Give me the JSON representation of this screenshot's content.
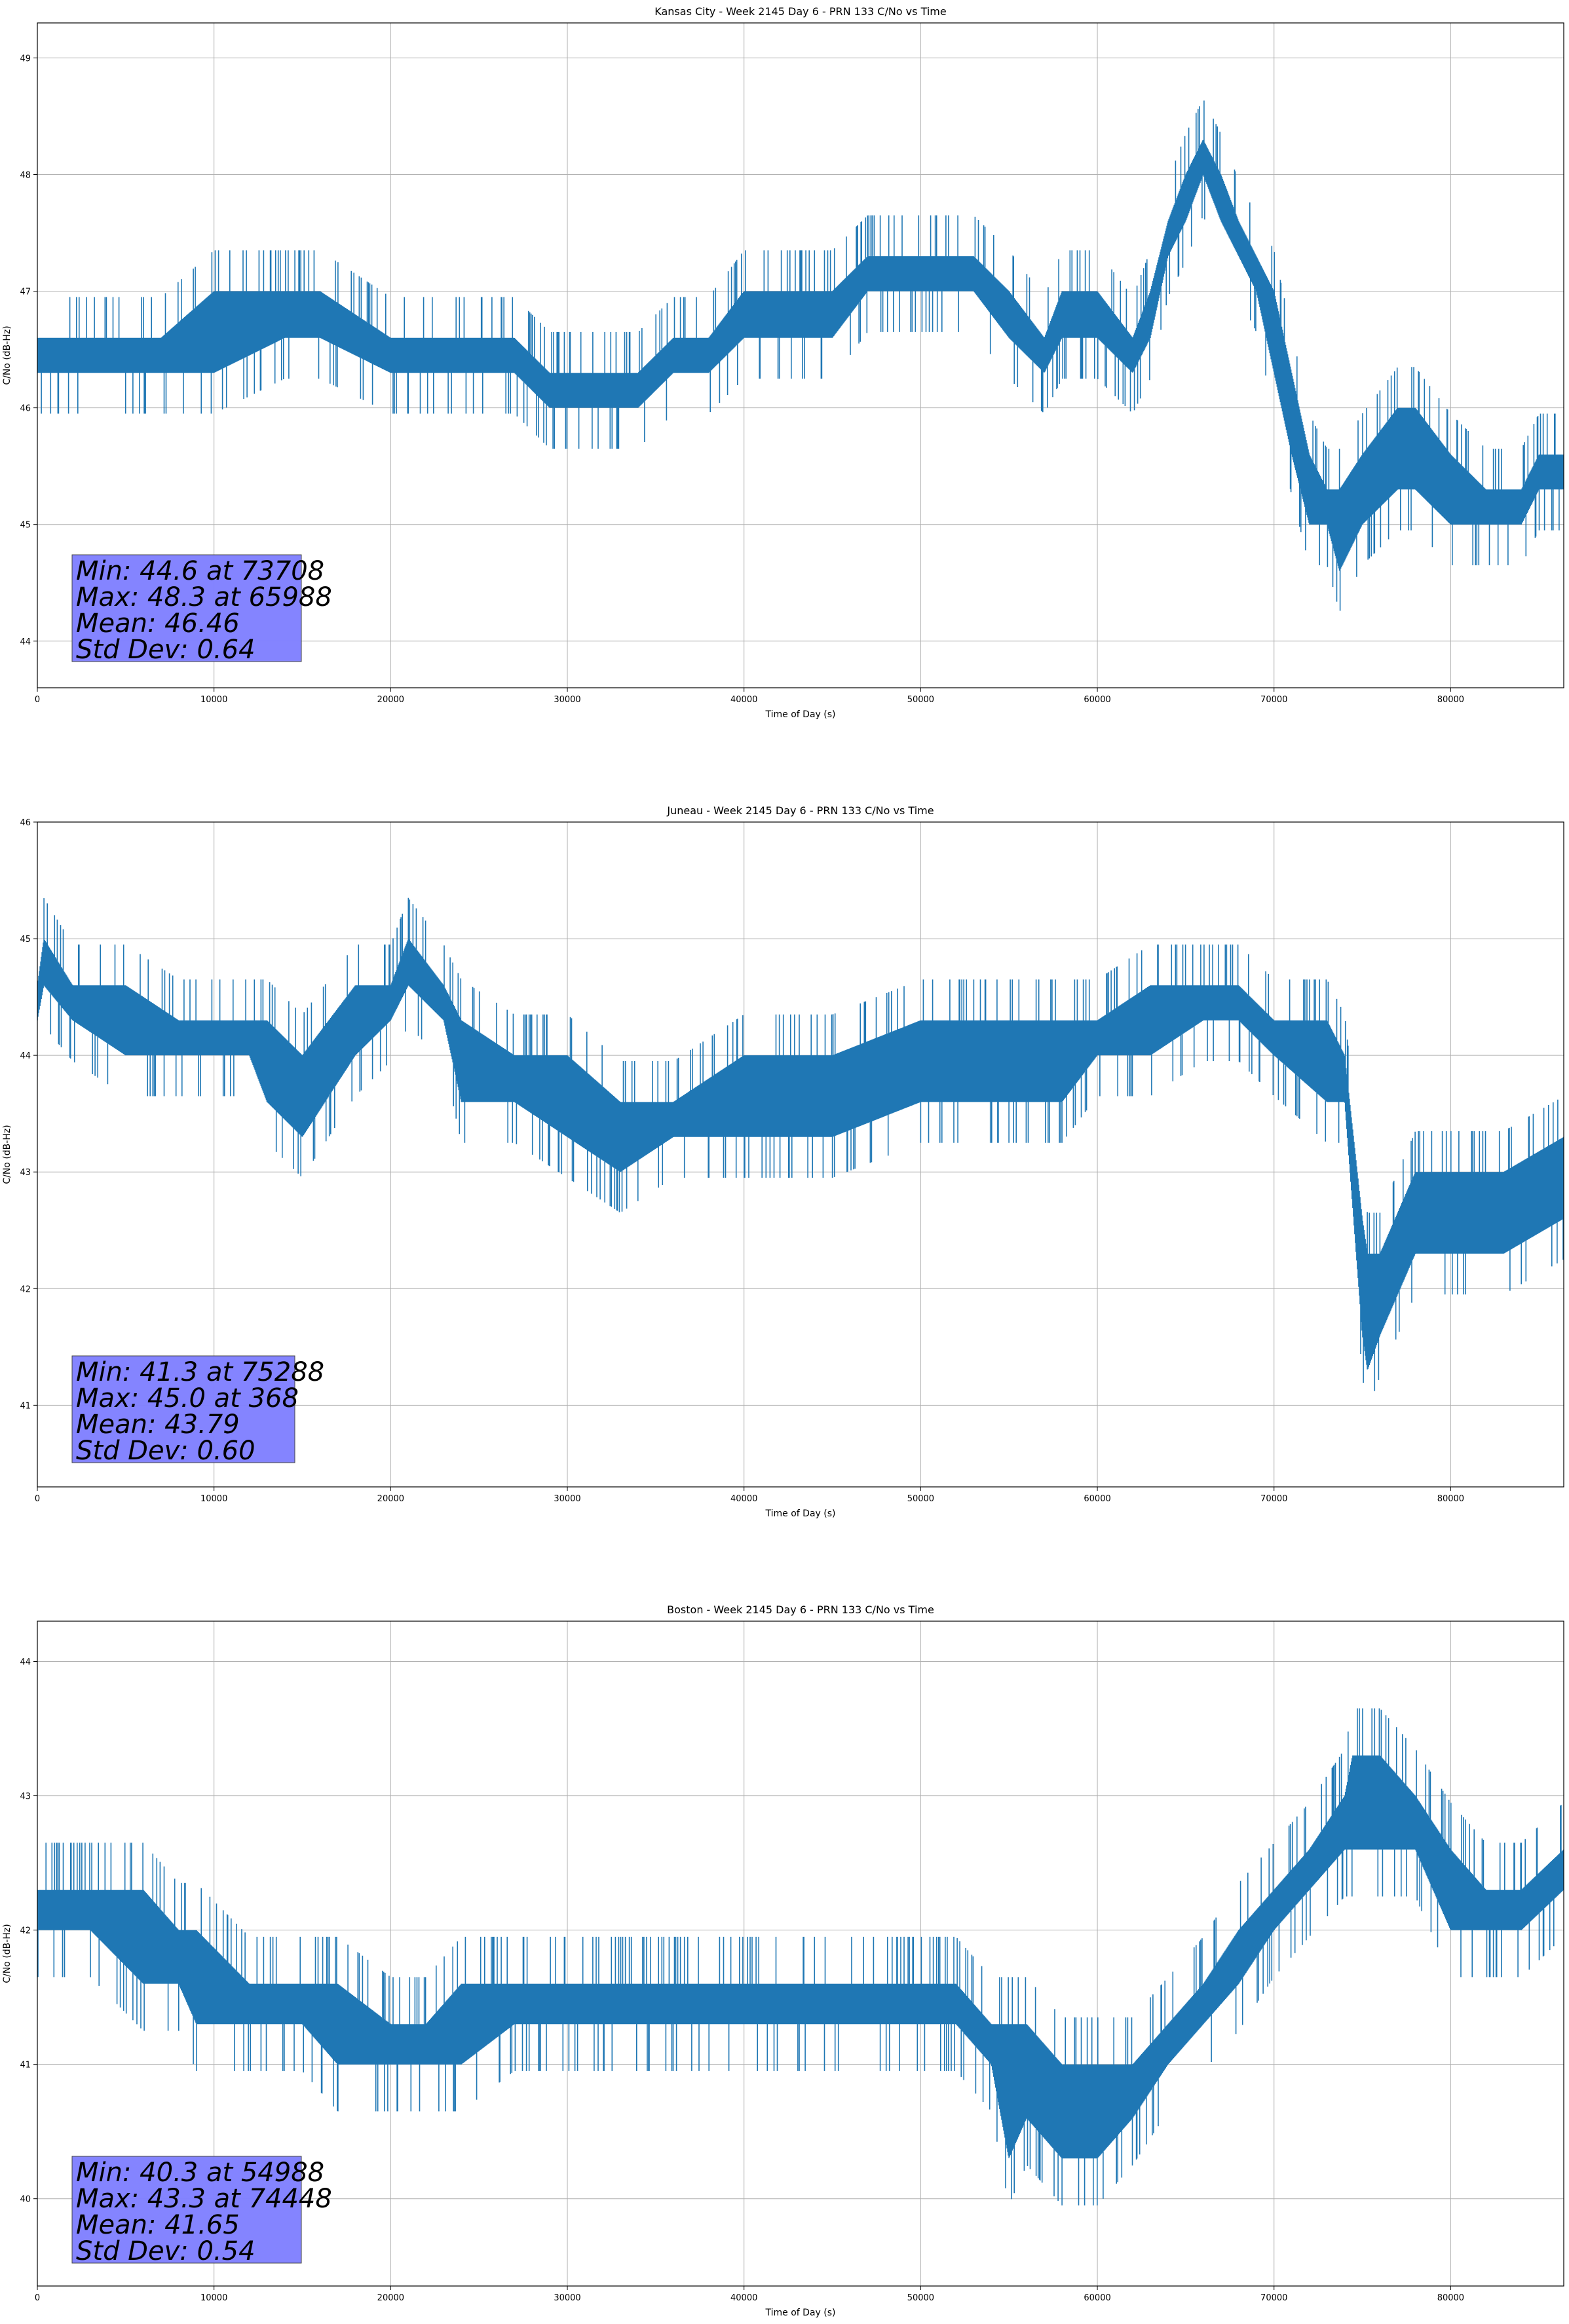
{
  "chart_data": [
    {
      "type": "line",
      "title": "Kansas City - Week 2145 Day 6 - PRN 133 C/No vs Time",
      "xlabel": "Time of Day (s)",
      "ylabel": "C/No (dB-Hz)",
      "xlim": [
        0,
        86400
      ],
      "ylim": [
        43.6,
        49.3
      ],
      "xticks": [
        0,
        10000,
        20000,
        30000,
        40000,
        50000,
        60000,
        70000,
        80000
      ],
      "yticks": [
        44,
        45,
        46,
        47,
        48,
        49
      ],
      "grid": true,
      "color": "#1f77b4",
      "series": [
        {
          "x": [
            0,
            5000,
            7000,
            10000,
            14000,
            16000,
            20000,
            24000,
            27000,
            29000,
            32000,
            34000,
            36000,
            38000,
            40000,
            42000,
            45000,
            47000,
            50000,
            53000,
            55000,
            57000,
            58000,
            60000,
            62000,
            63000,
            64000,
            65000,
            65988,
            67000,
            68000,
            69000,
            70000,
            71000,
            72000,
            73000,
            73708,
            75000,
            77000,
            78000,
            80000,
            82000,
            84000,
            85000,
            86400
          ],
          "lo": [
            46.3,
            46.3,
            46.3,
            46.3,
            46.6,
            46.6,
            46.3,
            46.3,
            46.3,
            46.0,
            46.0,
            46.0,
            46.3,
            46.3,
            46.6,
            46.6,
            46.6,
            47.0,
            47.0,
            47.0,
            46.6,
            46.3,
            46.6,
            46.6,
            46.3,
            46.6,
            47.3,
            47.6,
            48.0,
            47.6,
            47.3,
            47.0,
            46.3,
            45.6,
            45.0,
            45.0,
            44.6,
            45.0,
            45.3,
            45.3,
            45.0,
            45.0,
            45.0,
            45.3,
            45.3
          ],
          "hi": [
            46.6,
            46.6,
            46.6,
            47.0,
            47.0,
            47.0,
            46.6,
            46.6,
            46.6,
            46.3,
            46.3,
            46.3,
            46.6,
            46.6,
            47.0,
            47.0,
            47.0,
            47.3,
            47.3,
            47.3,
            47.0,
            46.6,
            47.0,
            47.0,
            46.6,
            47.0,
            47.6,
            48.0,
            48.3,
            48.0,
            47.6,
            47.3,
            47.0,
            46.3,
            45.6,
            45.3,
            45.3,
            45.6,
            46.0,
            46.0,
            45.6,
            45.3,
            45.3,
            45.6,
            45.6
          ]
        }
      ],
      "stats": {
        "min": "Min: 44.6 at 73708",
        "max": "Max: 48.3 at 65988",
        "mean": "Mean: 46.46",
        "std": "Std Dev: 0.64"
      },
      "stats_box_color": "#8080ff"
    },
    {
      "type": "line",
      "title": "Juneau - Week 2145 Day 6 - PRN 133 C/No vs Time",
      "xlabel": "Time of Day (s)",
      "ylabel": "C/No (dB-Hz)",
      "xlim": [
        0,
        86400
      ],
      "ylim": [
        40.3,
        46.0
      ],
      "xticks": [
        0,
        10000,
        20000,
        30000,
        40000,
        50000,
        60000,
        70000,
        80000
      ],
      "yticks": [
        41,
        42,
        43,
        44,
        45,
        46
      ],
      "grid": true,
      "color": "#1f77b4",
      "series": [
        {
          "x": [
            0,
            368,
            2000,
            5000,
            8000,
            12000,
            13000,
            15000,
            18000,
            20000,
            21000,
            23000,
            24000,
            27000,
            30000,
            33000,
            36000,
            40000,
            45000,
            50000,
            55000,
            58000,
            60000,
            63000,
            66000,
            68000,
            70000,
            73000,
            74000,
            75000,
            75288,
            76000,
            78000,
            80000,
            83000,
            86400
          ],
          "lo": [
            44.3,
            44.6,
            44.3,
            44.0,
            44.0,
            44.0,
            43.6,
            43.3,
            44.0,
            44.3,
            44.6,
            44.3,
            43.6,
            43.6,
            43.3,
            43.0,
            43.3,
            43.3,
            43.3,
            43.6,
            43.6,
            43.6,
            44.0,
            44.0,
            44.3,
            44.3,
            44.0,
            43.6,
            43.6,
            41.6,
            41.3,
            41.6,
            42.3,
            42.3,
            42.3,
            42.6
          ],
          "hi": [
            44.6,
            45.0,
            44.6,
            44.6,
            44.3,
            44.3,
            44.3,
            44.0,
            44.6,
            44.6,
            45.0,
            44.6,
            44.3,
            44.0,
            44.0,
            43.6,
            43.6,
            44.0,
            44.0,
            44.3,
            44.3,
            44.3,
            44.3,
            44.6,
            44.6,
            44.6,
            44.3,
            44.3,
            44.0,
            42.6,
            42.3,
            42.3,
            43.0,
            43.0,
            43.0,
            43.3
          ]
        }
      ],
      "stats": {
        "min": "Min: 41.3 at 75288",
        "max": "Max: 45.0 at 368",
        "mean": "Mean: 43.79",
        "std": "Std Dev: 0.60"
      },
      "stats_box_color": "#8080ff"
    },
    {
      "type": "line",
      "title": "Boston - Week 2145 Day 6 - PRN 133 C/No vs Time",
      "xlabel": "Time of Day (s)",
      "ylabel": "C/No (dB-Hz)",
      "xlim": [
        0,
        86400
      ],
      "ylim": [
        39.35,
        44.3
      ],
      "xticks": [
        0,
        10000,
        20000,
        30000,
        40000,
        50000,
        60000,
        70000,
        80000
      ],
      "yticks": [
        40,
        41,
        42,
        43,
        44
      ],
      "grid": true,
      "color": "#1f77b4",
      "series": [
        {
          "x": [
            0,
            3000,
            6000,
            8000,
            9000,
            12000,
            15000,
            17000,
            20000,
            22000,
            24000,
            27000,
            30000,
            35000,
            40000,
            45000,
            50000,
            52000,
            54000,
            54988,
            56000,
            58000,
            60000,
            62000,
            64000,
            66000,
            68000,
            70000,
            72000,
            74000,
            74448,
            76000,
            78000,
            80000,
            82000,
            84000,
            86400
          ],
          "lo": [
            42.0,
            42.0,
            41.6,
            41.6,
            41.3,
            41.3,
            41.3,
            41.0,
            41.0,
            41.0,
            41.0,
            41.3,
            41.3,
            41.3,
            41.3,
            41.3,
            41.3,
            41.3,
            41.0,
            40.3,
            40.6,
            40.3,
            40.3,
            40.6,
            41.0,
            41.3,
            41.6,
            42.0,
            42.3,
            42.6,
            42.6,
            42.6,
            42.6,
            42.0,
            42.0,
            42.0,
            42.3
          ],
          "hi": [
            42.3,
            42.3,
            42.3,
            42.0,
            42.0,
            41.6,
            41.6,
            41.6,
            41.3,
            41.3,
            41.6,
            41.6,
            41.6,
            41.6,
            41.6,
            41.6,
            41.6,
            41.6,
            41.3,
            41.3,
            41.3,
            41.0,
            41.0,
            41.0,
            41.3,
            41.6,
            42.0,
            42.3,
            42.6,
            43.0,
            43.3,
            43.3,
            43.0,
            42.6,
            42.3,
            42.3,
            42.6
          ]
        }
      ],
      "stats": {
        "min": "Min: 40.3 at 54988",
        "max": "Max: 43.3 at 74448",
        "mean": "Mean: 41.65",
        "std": "Std Dev: 0.54"
      },
      "stats_box_color": "#8080ff"
    }
  ]
}
